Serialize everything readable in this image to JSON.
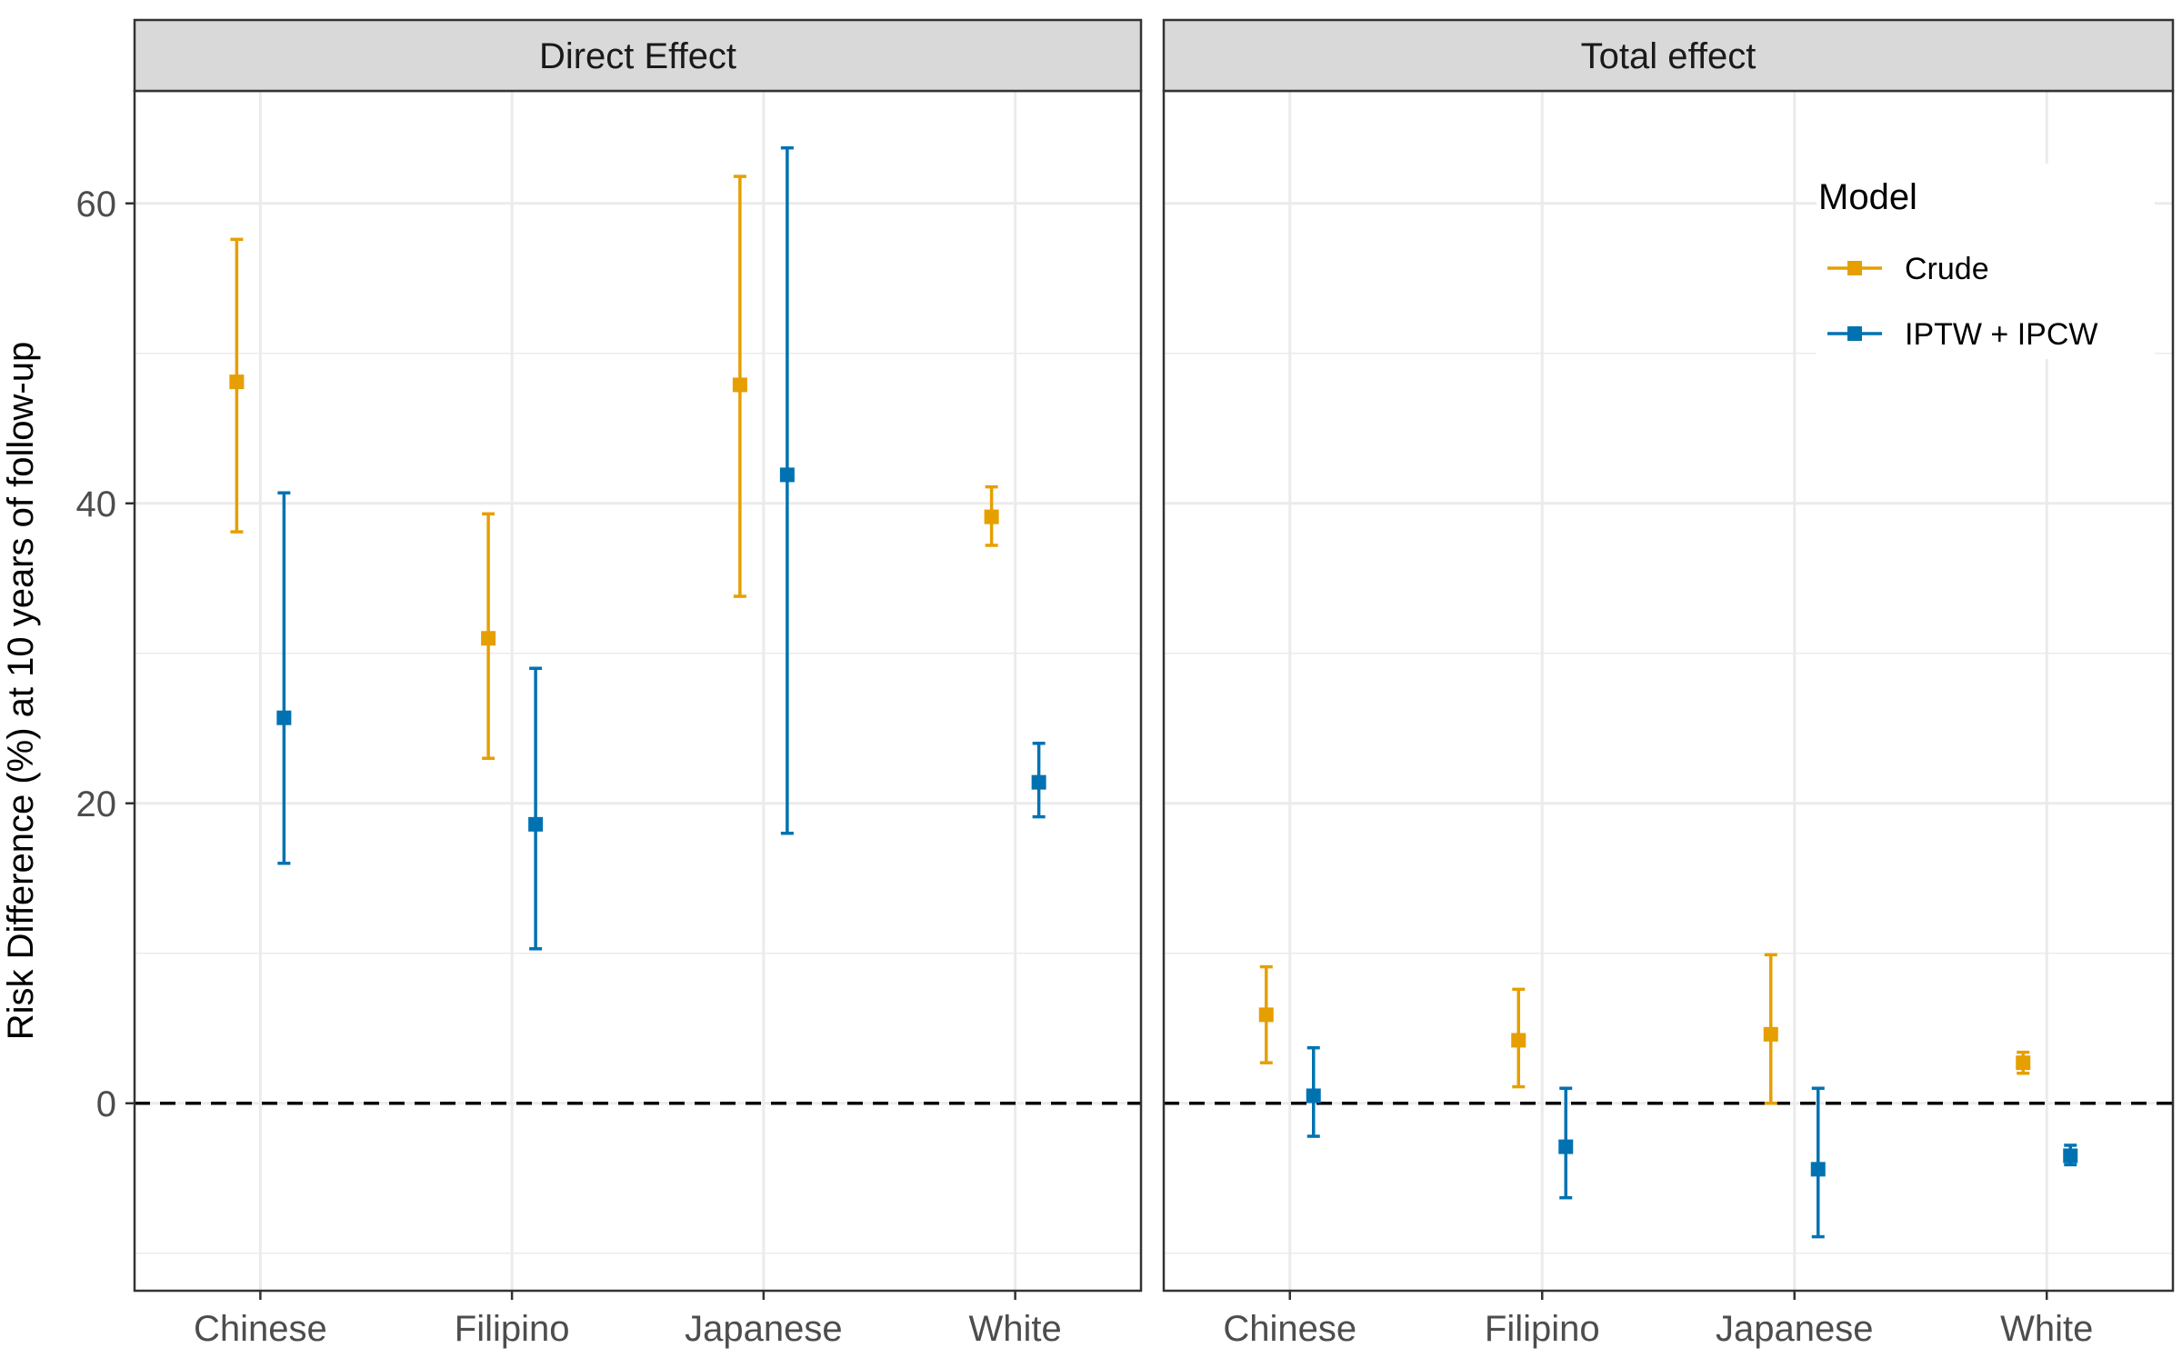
{
  "chart_data": {
    "type": "scatter",
    "subtype": "point-with-error-bars, faceted",
    "ylabel": "Risk Difference (%) at 10 years of follow-up",
    "xlabel": "",
    "categories": [
      "Chinese",
      "Filipino",
      "Japanese",
      "White"
    ],
    "y_ticks": [
      "0",
      "20",
      "40",
      "60"
    ],
    "ylim": [
      -12.5,
      67.5
    ],
    "reference_line": {
      "y": 0,
      "style": "dashed",
      "color": "#000000"
    },
    "grid": true,
    "legend": {
      "title": "Model",
      "position": "top-right, inside right panel",
      "entries": [
        {
          "label": "Crude",
          "color": "#E69F00"
        },
        {
          "label": "IPTW + IPCW",
          "color": "#0072B2"
        }
      ]
    },
    "panels": [
      {
        "title": "Direct Effect",
        "series": [
          {
            "name": "Crude",
            "color": "#E69F00",
            "points": [
              {
                "category": "Chinese",
                "estimate": 48.1,
                "lower": 38.1,
                "upper": 57.6
              },
              {
                "category": "Filipino",
                "estimate": 31.0,
                "lower": 23.0,
                "upper": 39.3
              },
              {
                "category": "Japanese",
                "estimate": 47.9,
                "lower": 33.8,
                "upper": 61.8
              },
              {
                "category": "White",
                "estimate": 39.1,
                "lower": 37.2,
                "upper": 41.1
              }
            ]
          },
          {
            "name": "IPTW + IPCW",
            "color": "#0072B2",
            "points": [
              {
                "category": "Chinese",
                "estimate": 25.7,
                "lower": 16.0,
                "upper": 40.7
              },
              {
                "category": "Filipino",
                "estimate": 18.6,
                "lower": 10.3,
                "upper": 29.0
              },
              {
                "category": "Japanese",
                "estimate": 41.9,
                "lower": 18.0,
                "upper": 63.7
              },
              {
                "category": "White",
                "estimate": 21.4,
                "lower": 19.1,
                "upper": 24.0
              }
            ]
          }
        ]
      },
      {
        "title": "Total effect",
        "series": [
          {
            "name": "Crude",
            "color": "#E69F00",
            "points": [
              {
                "category": "Chinese",
                "estimate": 5.9,
                "lower": 2.7,
                "upper": 9.1
              },
              {
                "category": "Filipino",
                "estimate": 4.2,
                "lower": 1.1,
                "upper": 7.6
              },
              {
                "category": "Japanese",
                "estimate": 4.6,
                "lower": 0.0,
                "upper": 9.9
              },
              {
                "category": "White",
                "estimate": 2.7,
                "lower": 2.0,
                "upper": 3.4
              }
            ]
          },
          {
            "name": "IPTW + IPCW",
            "color": "#0072B2",
            "points": [
              {
                "category": "Chinese",
                "estimate": 0.5,
                "lower": -2.2,
                "upper": 3.7
              },
              {
                "category": "Filipino",
                "estimate": -2.9,
                "lower": -6.3,
                "upper": 1.0
              },
              {
                "category": "Japanese",
                "estimate": -4.4,
                "lower": -8.9,
                "upper": 1.0
              },
              {
                "category": "White",
                "estimate": -3.5,
                "lower": -4.1,
                "upper": -2.8
              }
            ]
          }
        ]
      }
    ]
  }
}
